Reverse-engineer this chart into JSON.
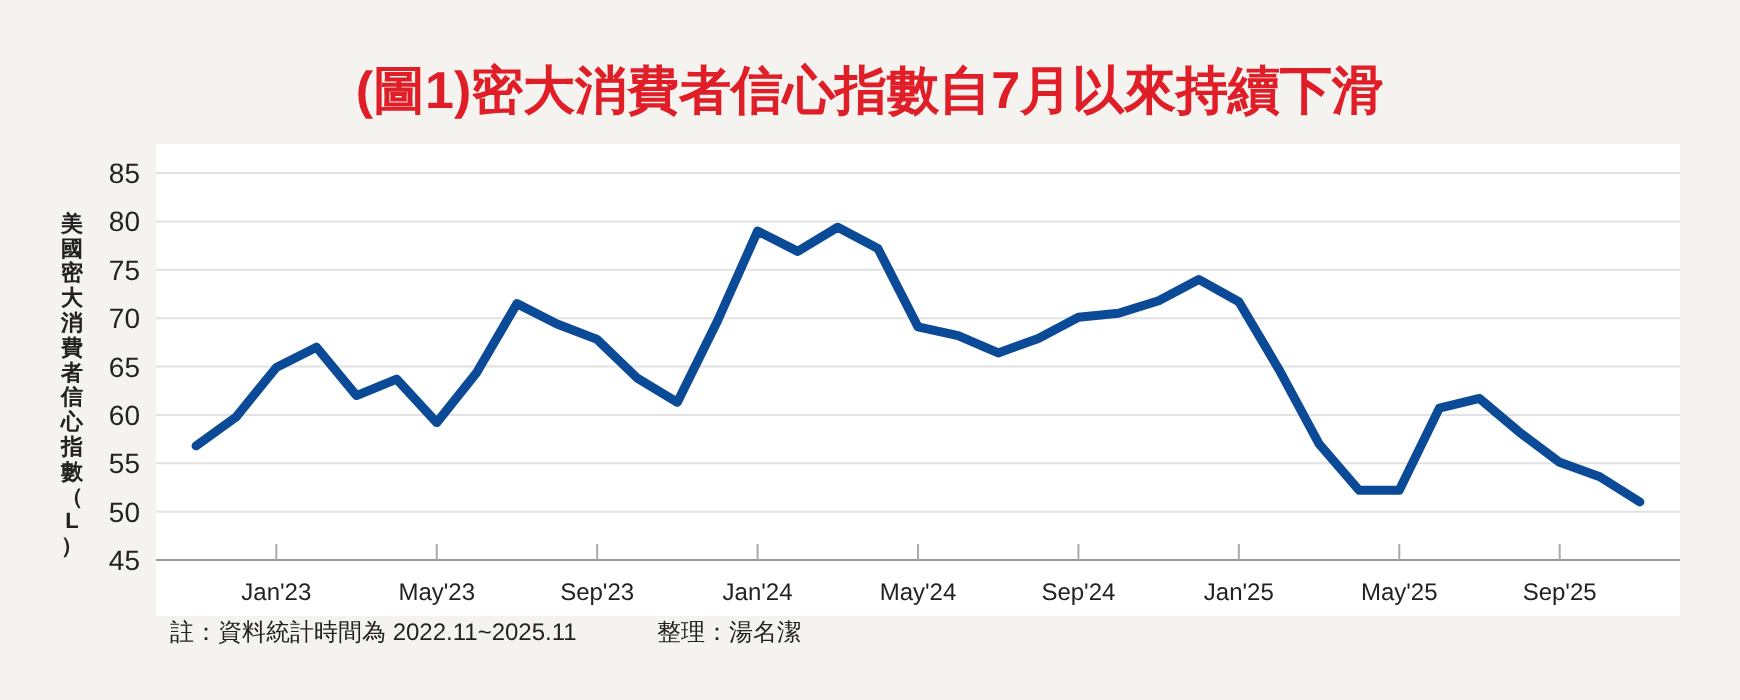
{
  "chart_data": {
    "type": "line",
    "title": "(圖1)密大消費者信心指數自7月以來持續下滑",
    "ylabel": "美國密大消費者信心指數（L）",
    "x": [
      "2022-11",
      "2022-12",
      "2023-01",
      "2023-02",
      "2023-03",
      "2023-04",
      "2023-05",
      "2023-06",
      "2023-07",
      "2023-08",
      "2023-09",
      "2023-10",
      "2023-11",
      "2023-12",
      "2024-01",
      "2024-02",
      "2024-03",
      "2024-04",
      "2024-05",
      "2024-06",
      "2024-07",
      "2024-08",
      "2024-09",
      "2024-10",
      "2024-11",
      "2024-12",
      "2025-01",
      "2025-02",
      "2025-03",
      "2025-04",
      "2025-05",
      "2025-06",
      "2025-07",
      "2025-08",
      "2025-09",
      "2025-10",
      "2025-11"
    ],
    "series": [
      {
        "color": "#0b4a97",
        "values": [
          56.8,
          59.8,
          64.9,
          67.0,
          62.0,
          63.7,
          59.2,
          64.4,
          71.5,
          69.4,
          67.8,
          63.8,
          61.3,
          69.7,
          79.0,
          76.9,
          79.4,
          77.2,
          69.1,
          68.2,
          66.4,
          67.9,
          70.1,
          70.5,
          71.8,
          74.0,
          71.7,
          64.7,
          57.0,
          52.2,
          52.2,
          60.7,
          61.7,
          58.2,
          55.1,
          53.6,
          51.0
        ]
      }
    ],
    "xlim": [
      "2022-10",
      "2025-12"
    ],
    "xticks": [
      {
        "value": "2023-01",
        "label": "Jan'23"
      },
      {
        "value": "2023-05",
        "label": "May'23"
      },
      {
        "value": "2023-09",
        "label": "Sep'23"
      },
      {
        "value": "2024-01",
        "label": "Jan'24"
      },
      {
        "value": "2024-05",
        "label": "May'24"
      },
      {
        "value": "2024-09",
        "label": "Sep'24"
      },
      {
        "value": "2025-01",
        "label": "Jan'25"
      },
      {
        "value": "2025-05",
        "label": "May'25"
      },
      {
        "value": "2025-09",
        "label": "Sep'25"
      }
    ],
    "ylim": [
      45,
      88
    ],
    "yticks": [
      45,
      50,
      55,
      60,
      65,
      70,
      75,
      80,
      85
    ],
    "grid": "y",
    "marker": "none",
    "line_style": "solid",
    "annotations": [
      "註：資料統計時間為 2022.11~2025.11",
      "整理：湯名潔"
    ]
  }
}
